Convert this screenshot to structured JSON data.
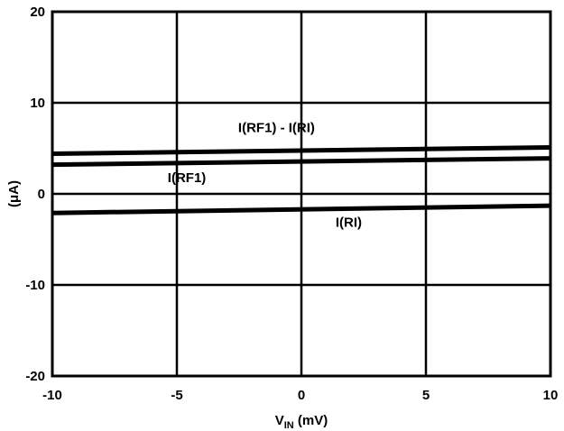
{
  "chart_data": {
    "type": "line",
    "title": "",
    "xlabel_main": "V",
    "xlabel_sub": "IN",
    "xlabel_unit": " (mV)",
    "ylabel": "(μA)",
    "xlim": [
      -10,
      10
    ],
    "ylim": [
      -20,
      20
    ],
    "x_ticks": [
      -10,
      -5,
      0,
      5,
      10
    ],
    "y_ticks": [
      -20,
      -10,
      0,
      10,
      20
    ],
    "x_tick_labels": [
      "-10",
      "-5",
      "0",
      "5",
      "10"
    ],
    "y_tick_labels": [
      "-20",
      "-10",
      "0",
      "10",
      "20"
    ],
    "grid": true,
    "legend": "none",
    "series": [
      {
        "name": "I(RF1) - I(RI)",
        "x": [
          -10,
          10
        ],
        "y": [
          4.4,
          5.1
        ],
        "label_at": [
          -1.0,
          6.8
        ]
      },
      {
        "name": "I(RF1)",
        "x": [
          -10,
          10
        ],
        "y": [
          3.2,
          3.9
        ],
        "label_at": [
          -4.6,
          1.3
        ]
      },
      {
        "name": "I(RI)",
        "x": [
          -10,
          10
        ],
        "y": [
          -2.1,
          -1.3
        ],
        "label_at": [
          1.9,
          -3.6
        ]
      }
    ]
  }
}
